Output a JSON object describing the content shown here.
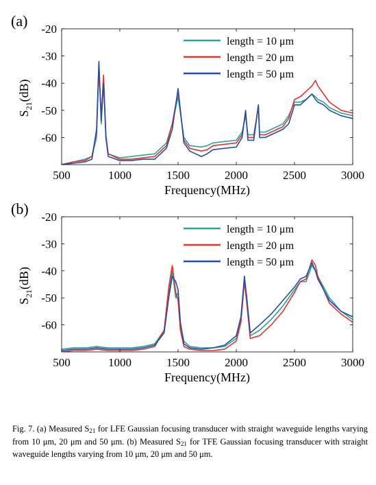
{
  "figure": {
    "caption": {
      "fig_label": "Fig. 7.",
      "t1": "(a) Measured S",
      "s1": "21",
      "t2": " for LFE Gaussian focusing transducer with straight waveguide lengths varying from 10 μm, 20 μm and 50 μm. (b) Measured S",
      "s2": "21",
      "t3": " for TFE Gaussian focusing transducer with straight waveguide lengths varying from 10 μm, 20 μm and 50 μm."
    }
  },
  "chart_data": [
    {
      "type": "line",
      "panel_label": "(a)",
      "xlabel": "Frequency(MHz)",
      "ylabel_main": "S",
      "ylabel_sub": "21",
      "ylabel_unit": "(dB)",
      "xlim": [
        500,
        3000
      ],
      "ylim": [
        -70,
        -20
      ],
      "xticks": [
        500,
        1000,
        1500,
        2000,
        2500,
        3000
      ],
      "yticks": [
        -20,
        -30,
        -40,
        -50,
        -60
      ],
      "grid": false,
      "legend_position": "top-right",
      "colors": [
        "#2aa39b",
        "#e8312a",
        "#1f4fa6"
      ],
      "x": [
        500,
        600,
        700,
        760,
        800,
        820,
        840,
        860,
        880,
        900,
        1000,
        1100,
        1200,
        1300,
        1400,
        1450,
        1500,
        1550,
        1600,
        1700,
        1750,
        1800,
        1900,
        2000,
        2050,
        2080,
        2100,
        2150,
        2190,
        2200,
        2250,
        2300,
        2400,
        2450,
        2500,
        2550,
        2600,
        2650,
        2680,
        2700,
        2750,
        2800,
        2900,
        3000
      ],
      "series": [
        {
          "name": "length = 10 μm",
          "values": [
            -70,
            -69,
            -68,
            -67,
            -60,
            -33,
            -55,
            -38,
            -60,
            -66,
            -67.5,
            -67,
            -66.5,
            -66,
            -62,
            -55,
            -45,
            -60,
            -63,
            -63.5,
            -63,
            -62,
            -61.5,
            -61,
            -58,
            -52,
            -59,
            -59,
            -49,
            -58,
            -58,
            -57,
            -55,
            -52,
            -47,
            -47,
            -46,
            -44,
            -45,
            -46,
            -47,
            -49,
            -51,
            -52
          ]
        },
        {
          "name": "length = 20 μm",
          "values": [
            -70,
            -69,
            -68.5,
            -67,
            -58,
            -35,
            -52,
            -37,
            -59,
            -66,
            -68,
            -68,
            -67.5,
            -67,
            -63,
            -55,
            -43,
            -61,
            -64,
            -65,
            -64.5,
            -63,
            -62.5,
            -62,
            -59,
            -51,
            -60,
            -60,
            -48,
            -59,
            -59,
            -58,
            -56,
            -53,
            -46,
            -45,
            -43,
            -41,
            -39,
            -41,
            -44,
            -47,
            -50,
            -51
          ]
        },
        {
          "name": "length = 50 μm",
          "values": [
            -70,
            -69.5,
            -69,
            -68,
            -57,
            -32,
            -54,
            -40,
            -60,
            -67,
            -68.5,
            -68.5,
            -68,
            -68,
            -64,
            -57,
            -42,
            -62,
            -65,
            -67,
            -66,
            -64.5,
            -64,
            -63.5,
            -60,
            -50,
            -61,
            -61,
            -48,
            -60,
            -60,
            -59,
            -57,
            -55,
            -48,
            -48,
            -46,
            -44,
            -46,
            -47,
            -48,
            -50,
            -52,
            -53
          ]
        }
      ]
    },
    {
      "type": "line",
      "panel_label": "(b)",
      "xlabel": "Frequency(MHz)",
      "ylabel_main": "S",
      "ylabel_sub": "21",
      "ylabel_unit": "(dB)",
      "xlim": [
        500,
        3000
      ],
      "ylim": [
        -70,
        -20
      ],
      "xticks": [
        500,
        1000,
        1500,
        2000,
        2500,
        3000
      ],
      "yticks": [
        -20,
        -30,
        -40,
        -50,
        -60
      ],
      "grid": false,
      "legend_position": "top-right",
      "colors": [
        "#2aa39b",
        "#e8312a",
        "#1f4fa6"
      ],
      "x": [
        500,
        600,
        700,
        800,
        900,
        1000,
        1100,
        1200,
        1300,
        1380,
        1420,
        1450,
        1480,
        1500,
        1520,
        1550,
        1600,
        1700,
        1800,
        1900,
        2000,
        2040,
        2070,
        2090,
        2120,
        2200,
        2300,
        2400,
        2500,
        2550,
        2600,
        2650,
        2680,
        2700,
        2750,
        2800,
        2900,
        3000
      ],
      "series": [
        {
          "name": "length = 10 μm",
          "values": [
            -69,
            -68.5,
            -68.5,
            -68,
            -68.5,
            -68.5,
            -68.5,
            -68,
            -67,
            -62,
            -48,
            -40,
            -50,
            -48,
            -60,
            -66,
            -68,
            -68.5,
            -68.5,
            -68,
            -65,
            -58,
            -43,
            -50,
            -64,
            -62,
            -58,
            -53,
            -47,
            -44,
            -44,
            -38,
            -40,
            -42,
            -46,
            -50,
            -55,
            -58
          ]
        },
        {
          "name": "length = 20 μm",
          "values": [
            -70,
            -69.5,
            -69.5,
            -69,
            -69.5,
            -69.5,
            -69.5,
            -69,
            -68,
            -62,
            -46,
            -38,
            -48,
            -51,
            -62,
            -68,
            -69,
            -69.5,
            -69.5,
            -69,
            -66,
            -59,
            -44,
            -52,
            -65,
            -64,
            -60,
            -55,
            -48,
            -44,
            -43,
            -36,
            -38,
            -42,
            -47,
            -52,
            -56,
            -59
          ]
        },
        {
          "name": "length = 50 μm",
          "values": [
            -69.5,
            -69,
            -69,
            -68.5,
            -69,
            -69,
            -69,
            -68.5,
            -67.5,
            -63,
            -50,
            -42,
            -44,
            -47,
            -59,
            -67,
            -68.5,
            -69,
            -68.5,
            -67.5,
            -64,
            -57,
            -42,
            -50,
            -63,
            -60,
            -56,
            -51,
            -46,
            -43,
            -42,
            -37,
            -40,
            -43,
            -47,
            -51,
            -55,
            -57
          ]
        }
      ]
    }
  ]
}
